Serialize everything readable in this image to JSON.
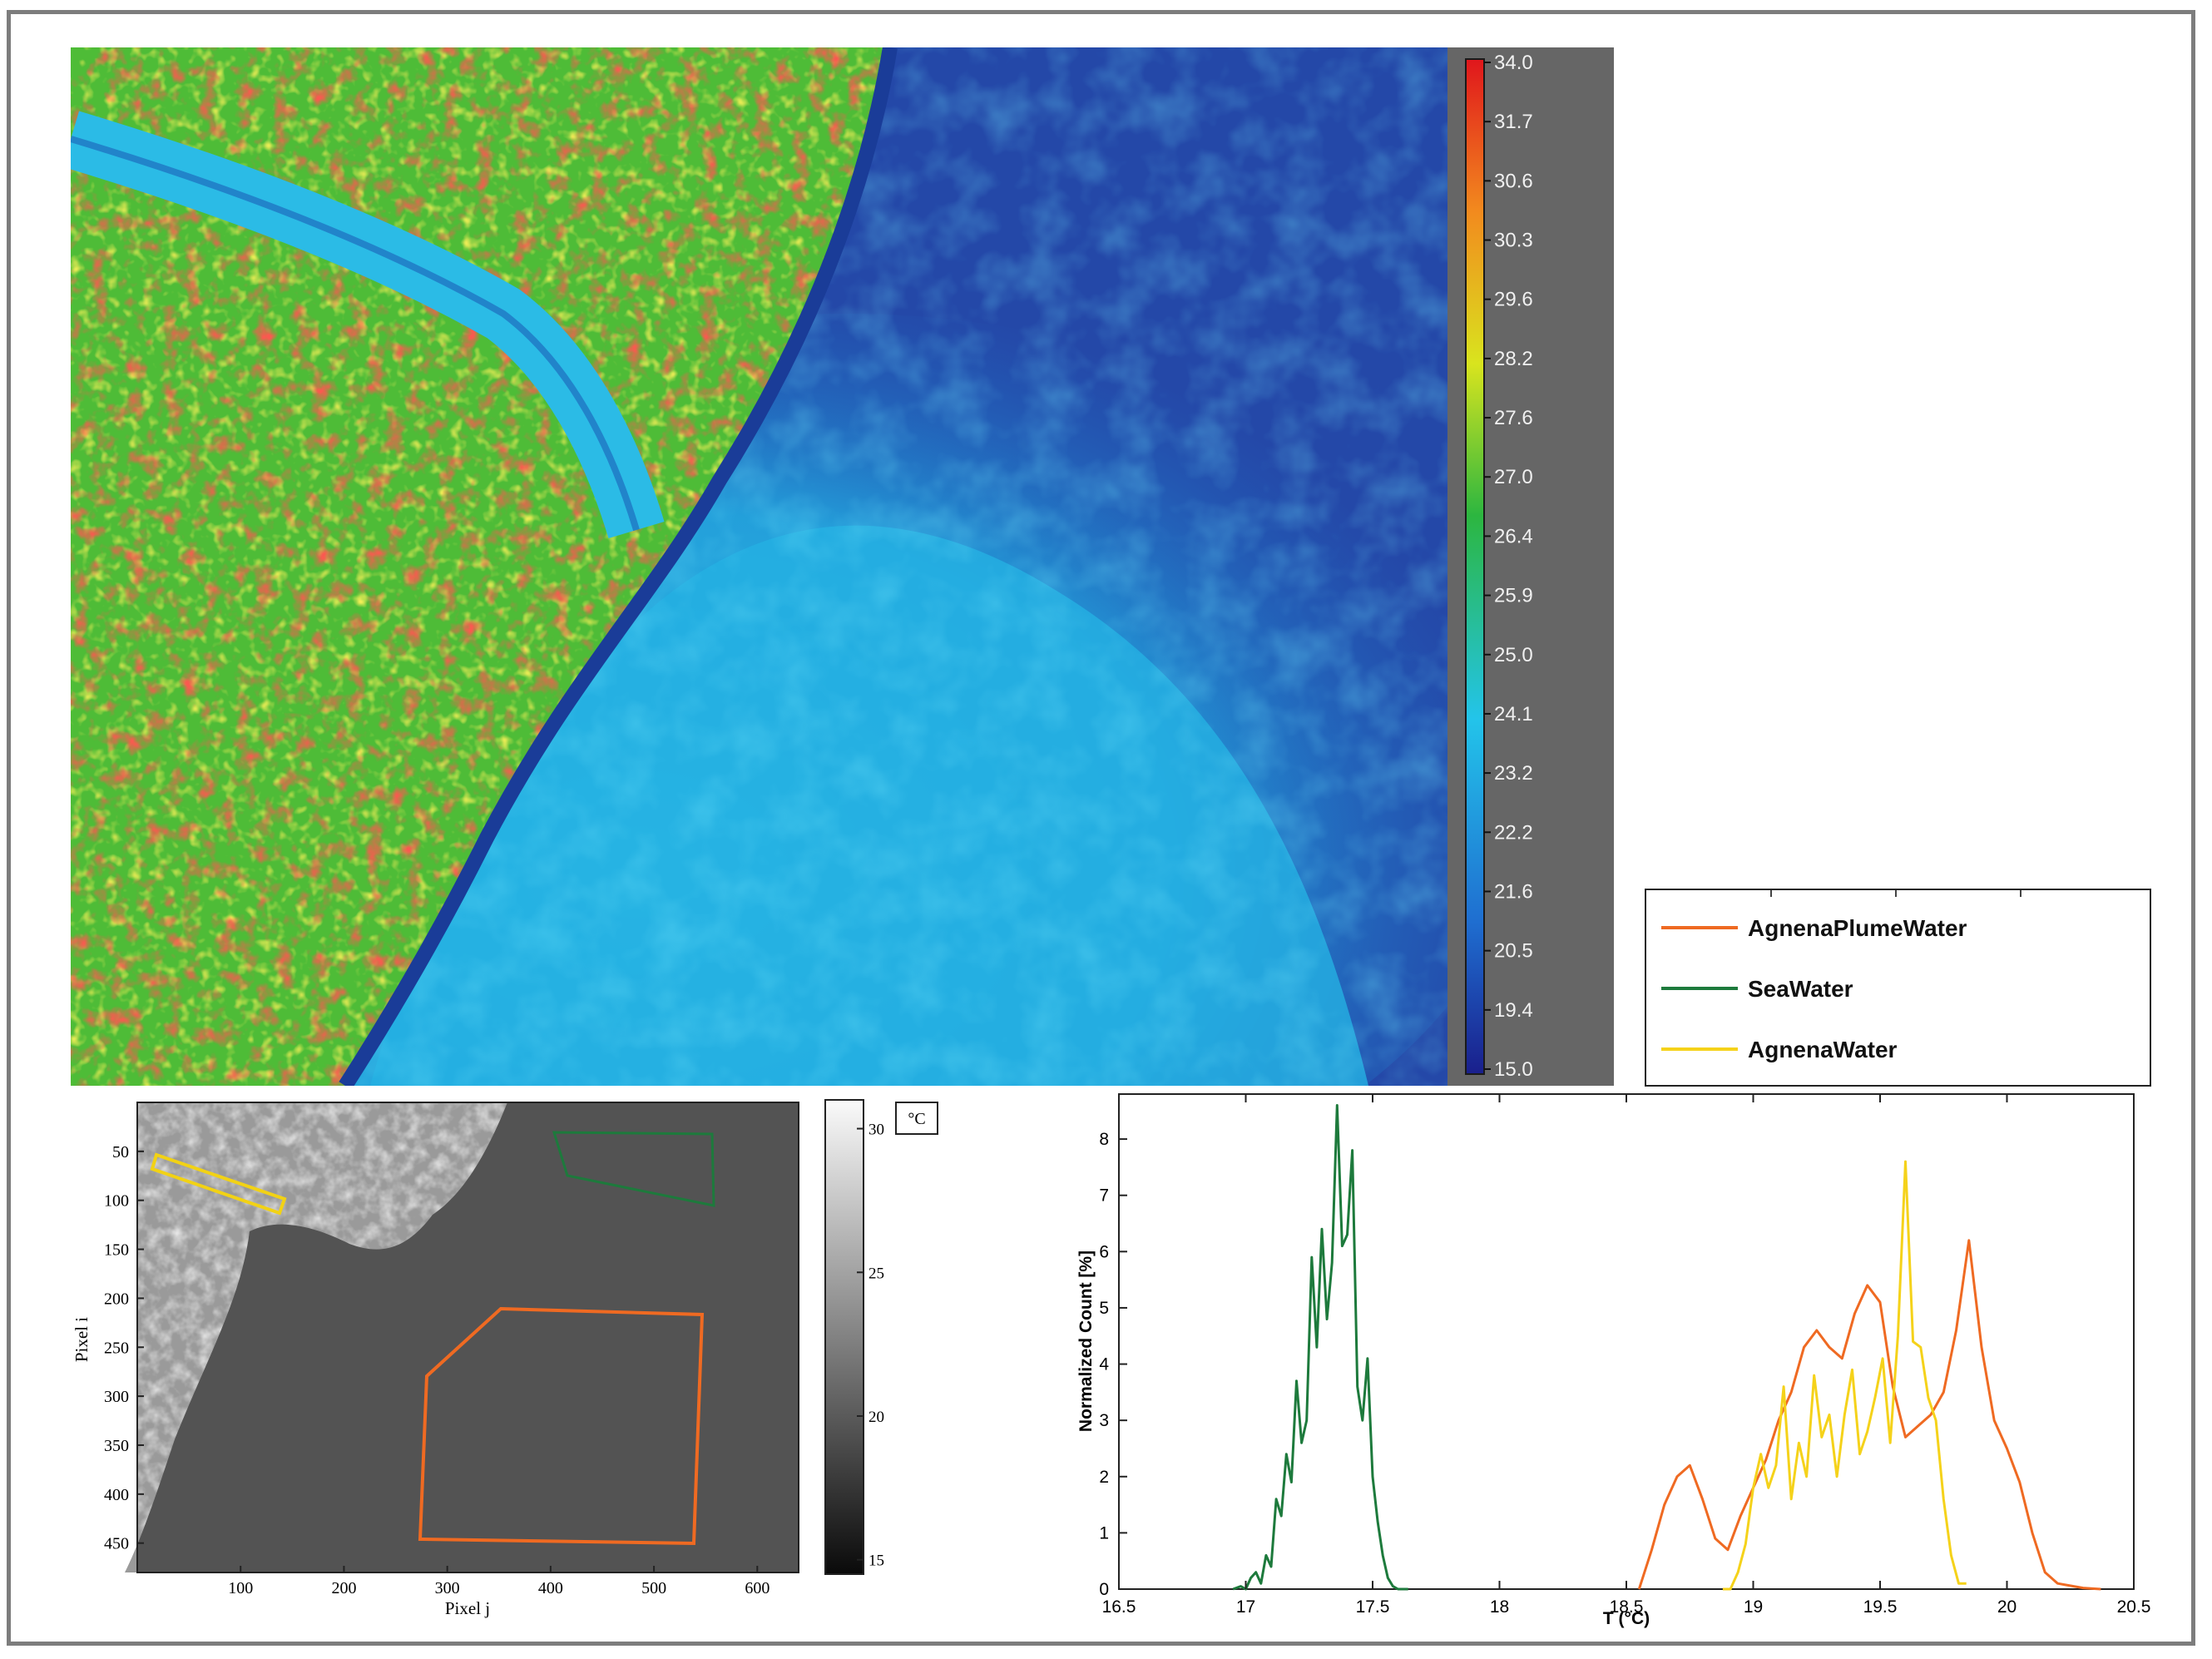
{
  "colors": {
    "frame": "#7d7d7d",
    "colorbar_panel": "#666666",
    "agnena_plume": "#ef6a22",
    "sea": "#1d7a3c",
    "agnena": "#f5d21a"
  },
  "thermal_colorbar": {
    "ticks": [
      "34.0",
      "31.7",
      "30.6",
      "30.3",
      "29.6",
      "28.2",
      "27.6",
      "27.0",
      "26.4",
      "25.9",
      "25.0",
      "24.1",
      "23.2",
      "22.2",
      "21.6",
      "20.5",
      "19.4",
      "15.0"
    ]
  },
  "legend": {
    "items": [
      {
        "label": "AgnenaPlumeWater",
        "color": "#ef6a22"
      },
      {
        "label": "SeaWater",
        "color": "#1d7a3c"
      },
      {
        "label": "AgnenaWater",
        "color": "#f5d21a"
      }
    ]
  },
  "grayscale_map": {
    "xlabel": "Pixel j",
    "ylabel": "Pixel i",
    "xticks": [
      "100",
      "200",
      "300",
      "400",
      "500",
      "600"
    ],
    "yticks": [
      "50",
      "100",
      "150",
      "200",
      "250",
      "300",
      "350",
      "400",
      "450"
    ],
    "colorbar_unit": "°C",
    "colorbar_ticks": [
      "30",
      "25",
      "20",
      "15"
    ]
  },
  "chart_data": {
    "type": "line",
    "xlabel": "T (°C)",
    "ylabel": "Normalized Count [%]",
    "xlim": [
      16.5,
      20.5
    ],
    "ylim": [
      0,
      8.8
    ],
    "xticks": [
      "16.5",
      "17",
      "17.5",
      "18",
      "18.5",
      "19",
      "19.5",
      "20",
      "20.5"
    ],
    "yticks": [
      "0",
      "1",
      "2",
      "3",
      "4",
      "5",
      "6",
      "7",
      "8"
    ],
    "series": [
      {
        "name": "SeaWater",
        "x": [
          16.95,
          16.98,
          17.0,
          17.02,
          17.04,
          17.06,
          17.08,
          17.1,
          17.12,
          17.14,
          17.16,
          17.18,
          17.2,
          17.22,
          17.24,
          17.26,
          17.28,
          17.3,
          17.32,
          17.34,
          17.36,
          17.38,
          17.4,
          17.42,
          17.44,
          17.46,
          17.48,
          17.5,
          17.52,
          17.54,
          17.56,
          17.58,
          17.6,
          17.62,
          17.64
        ],
        "y": [
          0,
          0.05,
          0,
          0.2,
          0.3,
          0.1,
          0.6,
          0.4,
          1.6,
          1.3,
          2.4,
          1.9,
          3.7,
          2.6,
          3.0,
          5.9,
          4.3,
          6.4,
          4.8,
          5.8,
          8.6,
          6.1,
          6.3,
          7.8,
          3.6,
          3.0,
          4.1,
          2.0,
          1.2,
          0.6,
          0.2,
          0.05,
          0,
          0,
          0
        ]
      },
      {
        "name": "AgnenaPlumeWater",
        "x": [
          18.55,
          18.6,
          18.65,
          18.7,
          18.75,
          18.8,
          18.85,
          18.9,
          18.95,
          19.0,
          19.05,
          19.1,
          19.15,
          19.2,
          19.25,
          19.3,
          19.35,
          19.4,
          19.45,
          19.5,
          19.55,
          19.6,
          19.65,
          19.7,
          19.75,
          19.8,
          19.85,
          19.9,
          19.95,
          20.0,
          20.05,
          20.1,
          20.15,
          20.2,
          20.3,
          20.37
        ],
        "y": [
          0,
          0.7,
          1.5,
          2.0,
          2.2,
          1.6,
          0.9,
          0.7,
          1.3,
          1.8,
          2.3,
          3.0,
          3.5,
          4.3,
          4.6,
          4.3,
          4.1,
          4.9,
          5.4,
          5.1,
          3.6,
          2.7,
          2.9,
          3.1,
          3.5,
          4.6,
          6.2,
          4.3,
          3.0,
          2.5,
          1.9,
          1.0,
          0.3,
          0.1,
          0.02,
          0
        ]
      },
      {
        "name": "AgnenaWater",
        "x": [
          18.88,
          18.91,
          18.94,
          18.97,
          19.0,
          19.03,
          19.06,
          19.09,
          19.12,
          19.15,
          19.18,
          19.21,
          19.24,
          19.27,
          19.3,
          19.33,
          19.36,
          19.39,
          19.42,
          19.45,
          19.48,
          19.51,
          19.54,
          19.57,
          19.6,
          19.63,
          19.66,
          19.69,
          19.72,
          19.75,
          19.78,
          19.81,
          19.84
        ],
        "y": [
          0,
          0,
          0.3,
          0.8,
          1.8,
          2.4,
          1.8,
          2.2,
          3.6,
          1.6,
          2.6,
          2.0,
          3.8,
          2.7,
          3.1,
          2.0,
          3.1,
          3.9,
          2.4,
          2.8,
          3.4,
          4.1,
          2.6,
          4.5,
          7.6,
          4.4,
          4.3,
          3.4,
          3.0,
          1.6,
          0.6,
          0.1,
          0.1
        ]
      }
    ]
  }
}
